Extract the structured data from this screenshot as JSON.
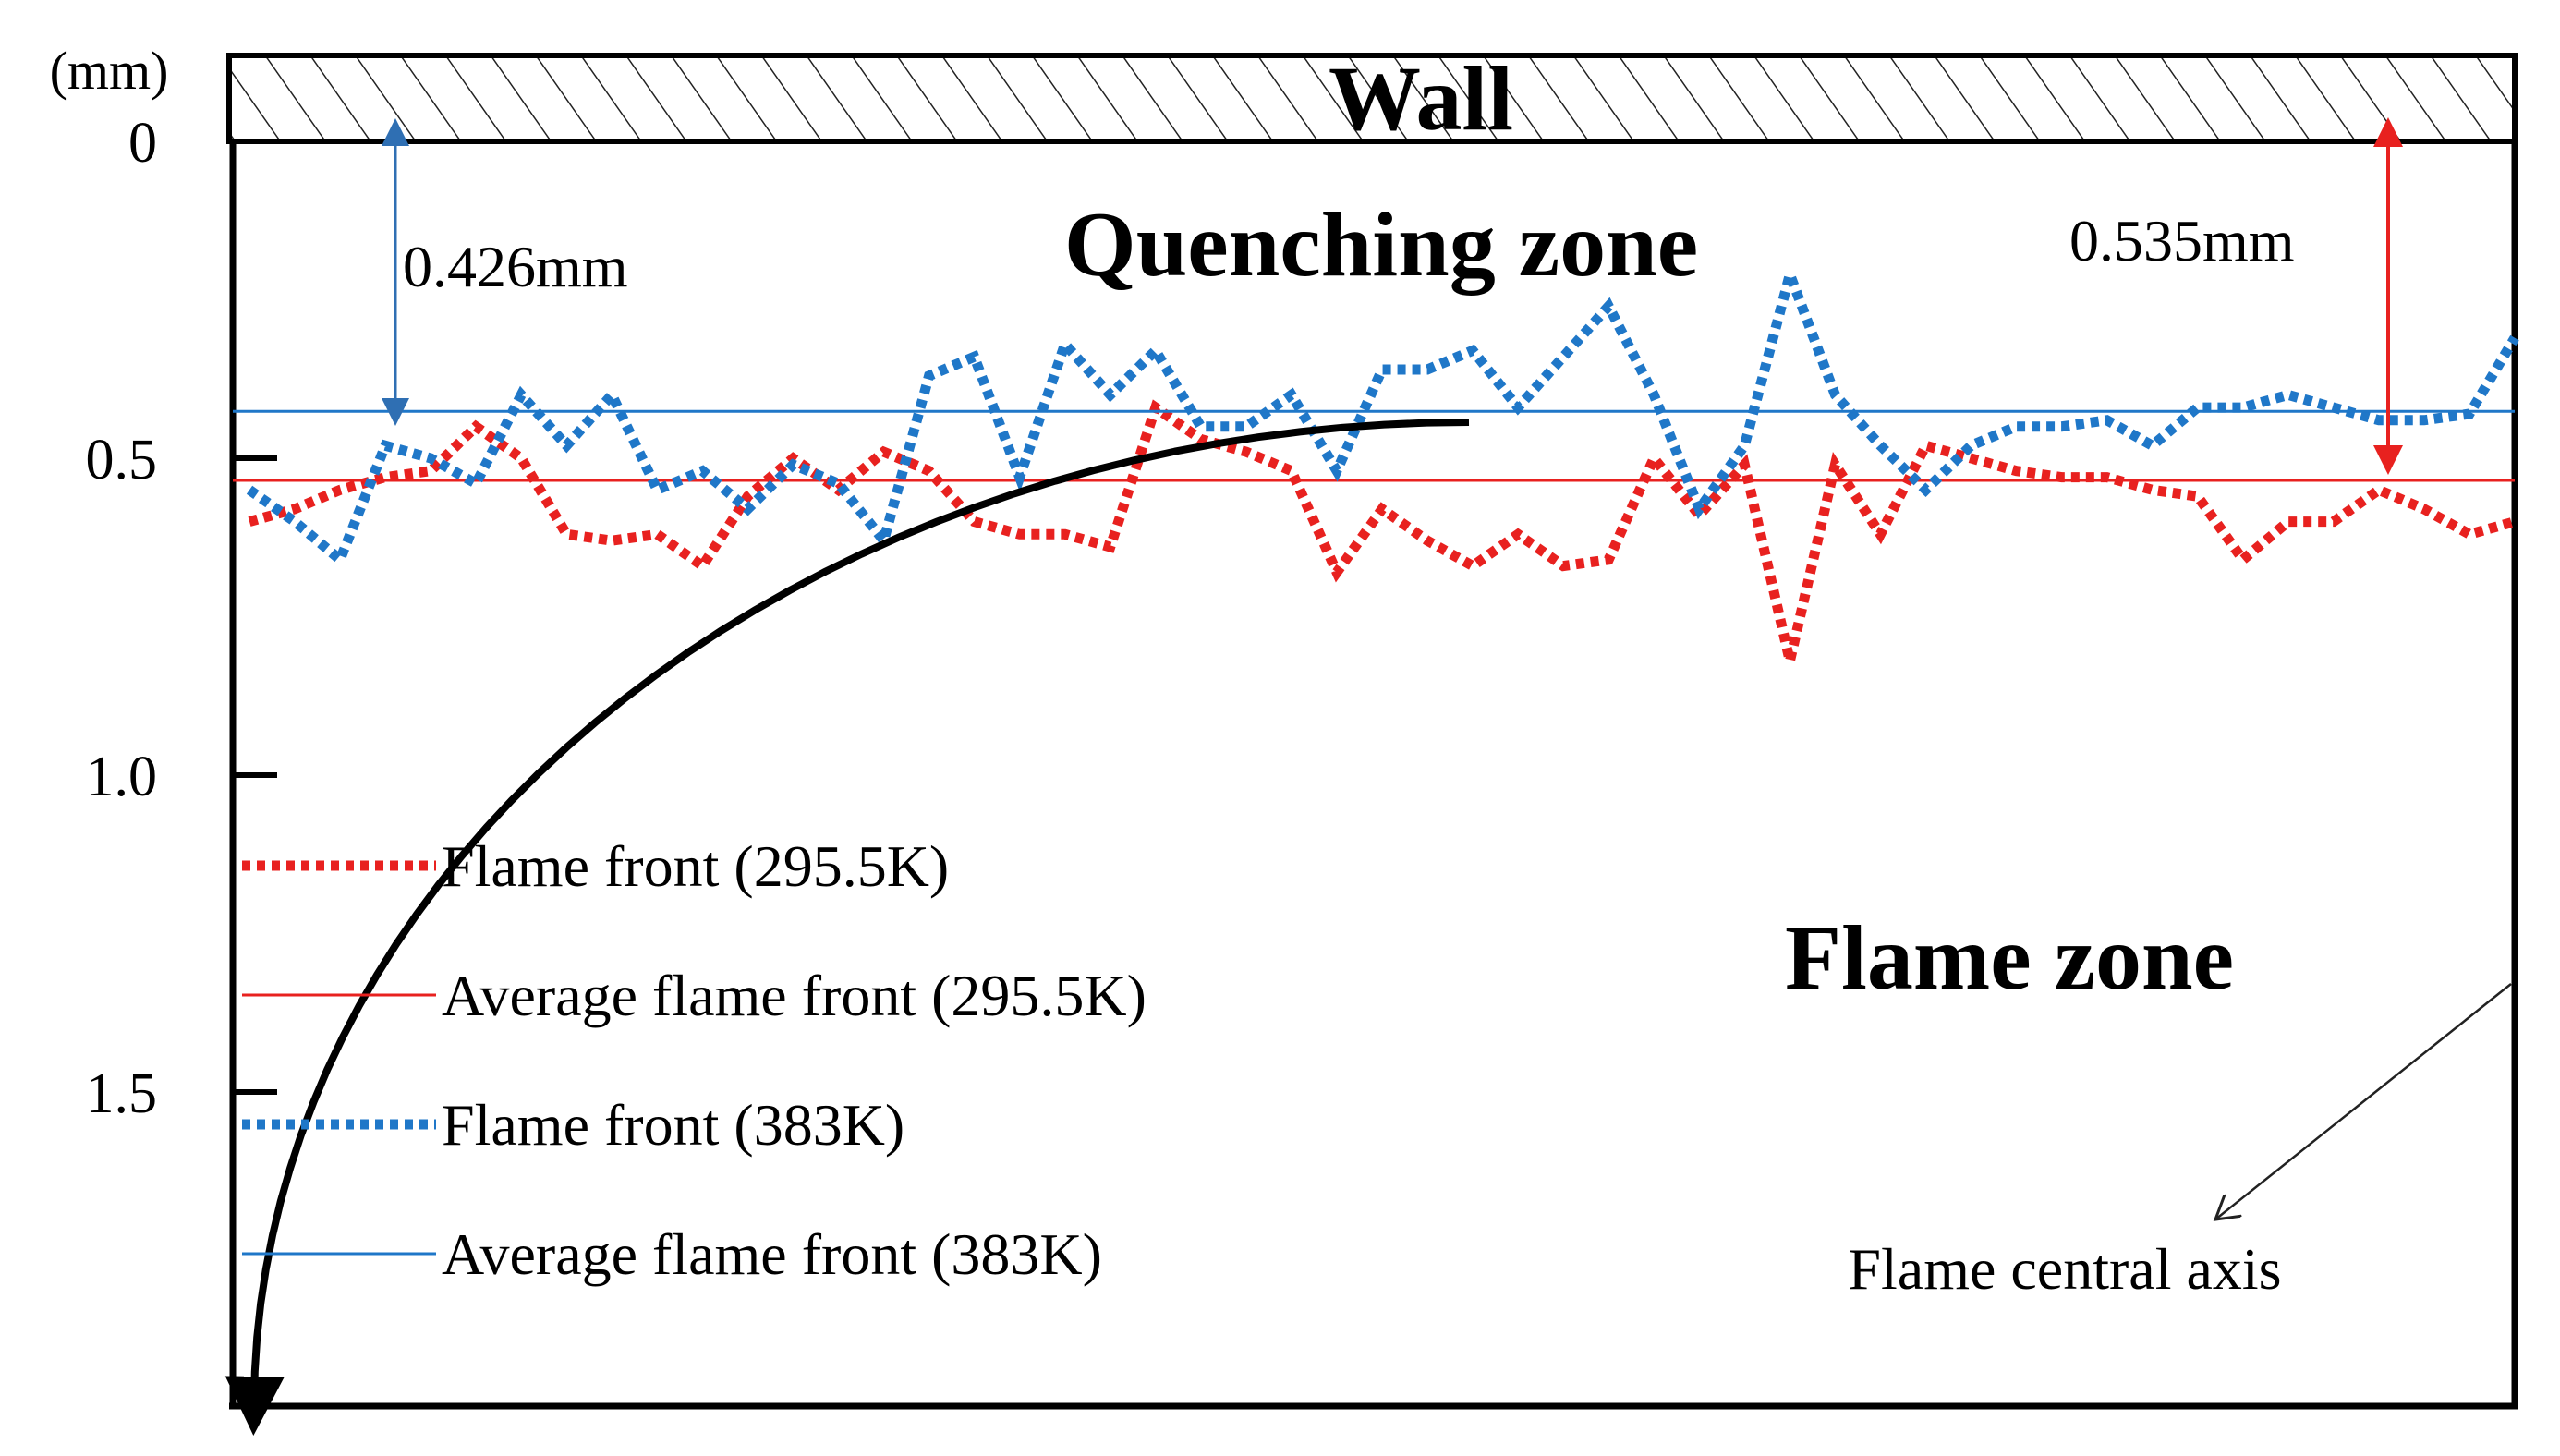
{
  "chart_data": {
    "type": "line",
    "title": "",
    "y_unit_label": "(mm)",
    "ylim": [
      0,
      2.0
    ],
    "y_ticks": [
      {
        "value": 0,
        "label": "0"
      },
      {
        "value": 0.5,
        "label": "0.5"
      },
      {
        "value": 1.0,
        "label": "1.0"
      },
      {
        "value": 1.5,
        "label": "1.5"
      }
    ],
    "x_range": [
      0,
      100
    ],
    "wall_label": "Wall",
    "zones": {
      "quenching": "Quenching zone",
      "flame": "Flame zone"
    },
    "annotations": {
      "dist_383": "0.426mm",
      "dist_295": "0.535mm",
      "central_axis": "Flame central axis"
    },
    "series": [
      {
        "name": "Flame front (295.5K)",
        "style": "dotted",
        "color": "#e8211f",
        "x": [
          0,
          2,
          4,
          6,
          8,
          10,
          12,
          14,
          16,
          18,
          20,
          22,
          24,
          26,
          28,
          30,
          32,
          34,
          36,
          38,
          40,
          42,
          44,
          46,
          48,
          50,
          52,
          54,
          56,
          58,
          60,
          62,
          64,
          66,
          68,
          70,
          72,
          74,
          76,
          78,
          80,
          82,
          84,
          86,
          88,
          90,
          92,
          94,
          96,
          98,
          100
        ],
        "y": [
          0.6,
          0.58,
          0.55,
          0.53,
          0.52,
          0.45,
          0.5,
          0.62,
          0.63,
          0.62,
          0.67,
          0.56,
          0.5,
          0.55,
          0.49,
          0.52,
          0.6,
          0.62,
          0.62,
          0.64,
          0.42,
          0.47,
          0.49,
          0.52,
          0.68,
          0.58,
          0.63,
          0.67,
          0.62,
          0.67,
          0.66,
          0.5,
          0.59,
          0.51,
          0.82,
          0.51,
          0.62,
          0.48,
          0.5,
          0.52,
          0.53,
          0.53,
          0.55,
          0.56,
          0.66,
          0.6,
          0.6,
          0.55,
          0.58,
          0.62,
          0.6
        ]
      },
      {
        "name": "Average flame front (295.5K)",
        "style": "solid",
        "color": "#e8211f",
        "constant": 0.535
      },
      {
        "name": "Flame front (383K)",
        "style": "dotted",
        "color": "#1f77c8",
        "x": [
          0,
          2,
          4,
          6,
          8,
          10,
          12,
          14,
          16,
          18,
          20,
          22,
          24,
          26,
          28,
          30,
          32,
          34,
          36,
          38,
          40,
          42,
          44,
          46,
          48,
          50,
          52,
          54,
          56,
          58,
          60,
          62,
          64,
          66,
          68,
          70,
          72,
          74,
          76,
          78,
          80,
          82,
          84,
          86,
          88,
          90,
          92,
          94,
          96,
          98,
          100
        ],
        "y": [
          0.55,
          0.6,
          0.66,
          0.48,
          0.5,
          0.54,
          0.4,
          0.48,
          0.4,
          0.55,
          0.52,
          0.58,
          0.51,
          0.54,
          0.63,
          0.37,
          0.34,
          0.53,
          0.32,
          0.4,
          0.33,
          0.45,
          0.45,
          0.4,
          0.52,
          0.36,
          0.36,
          0.33,
          0.42,
          0.34,
          0.26,
          0.4,
          0.58,
          0.48,
          0.21,
          0.4,
          0.48,
          0.55,
          0.48,
          0.45,
          0.45,
          0.44,
          0.48,
          0.42,
          0.42,
          0.4,
          0.42,
          0.44,
          0.44,
          0.43,
          0.31
        ]
      },
      {
        "name": "Average flame front (383K)",
        "style": "solid",
        "color": "#1f77c8",
        "constant": 0.426
      },
      {
        "name": "Flame front profile",
        "style": "solid",
        "color": "#000000",
        "shape": "quarter-arc"
      }
    ],
    "legend": [
      {
        "label": "Flame front (295.5K)",
        "color": "#e8211f",
        "style": "dotted"
      },
      {
        "label": "Average flame front (295.5K)",
        "color": "#e8211f",
        "style": "solid"
      },
      {
        "label": "Flame front (383K)",
        "color": "#1f77c8",
        "style": "dotted"
      },
      {
        "label": "Average flame front (383K)",
        "color": "#1f77c8",
        "style": "solid"
      }
    ]
  }
}
